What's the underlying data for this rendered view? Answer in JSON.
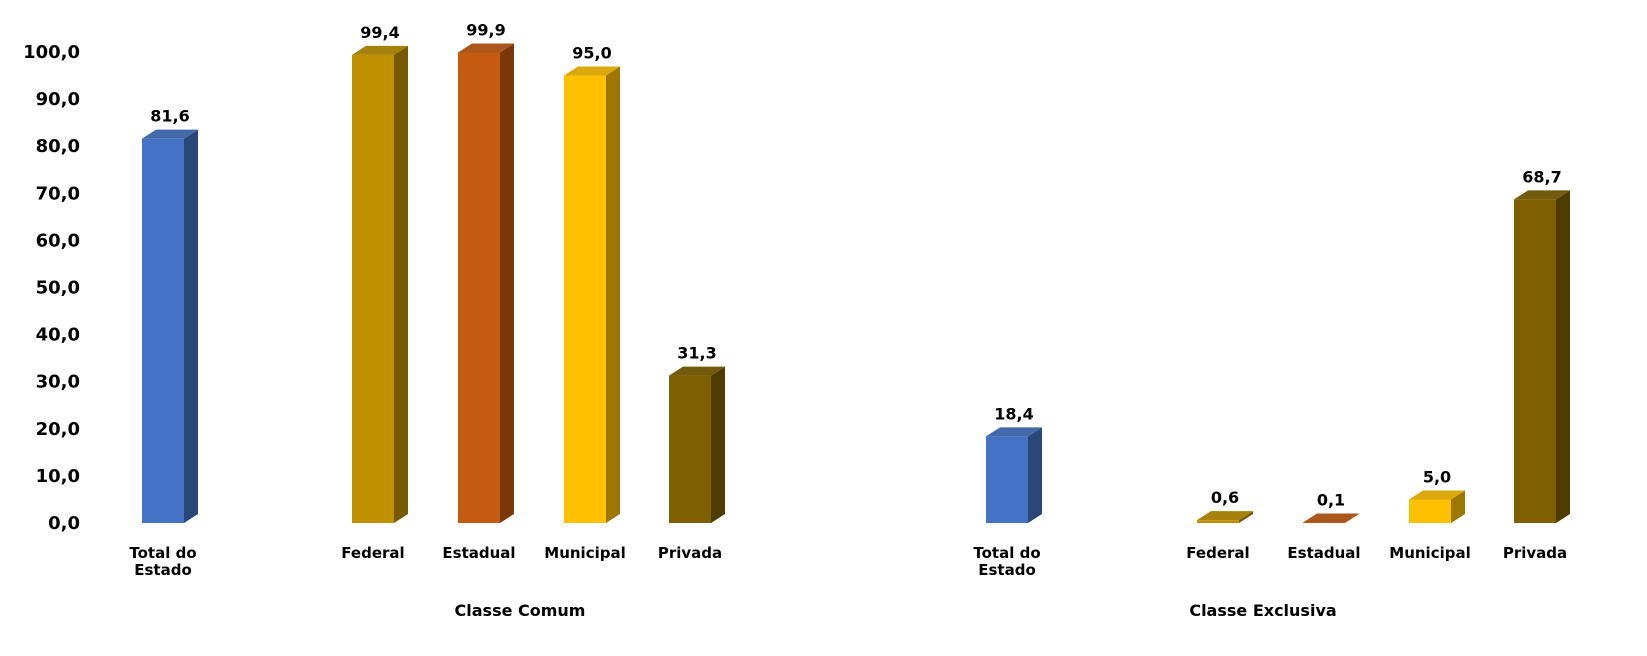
{
  "chart_data": {
    "type": "bar",
    "ylim": [
      0,
      100
    ],
    "y_ticks": [
      "0,0",
      "10,0",
      "20,0",
      "30,0",
      "40,0",
      "50,0",
      "60,0",
      "70,0",
      "80,0",
      "90,0",
      "100,0"
    ],
    "grid": false,
    "legend": "none",
    "groups": [
      {
        "name": "Classe Comum",
        "bars": [
          {
            "category": "Total do Estado",
            "value": 81.6,
            "label": "81,6",
            "color": "#4472C4"
          },
          {
            "category": "Federal",
            "value": 99.4,
            "label": "99,4",
            "color": "#BF9000"
          },
          {
            "category": "Estadual",
            "value": 99.9,
            "label": "99,9",
            "color": "#C55A11"
          },
          {
            "category": "Municipal",
            "value": 95.0,
            "label": "95,0",
            "color": "#FFC000"
          },
          {
            "category": "Privada",
            "value": 31.3,
            "label": "31,3",
            "color": "#7F6000"
          }
        ]
      },
      {
        "name": "Classe Exclusiva",
        "bars": [
          {
            "category": "Total do Estado",
            "value": 18.4,
            "label": "18,4",
            "color": "#4472C4"
          },
          {
            "category": "Federal",
            "value": 0.6,
            "label": "0,6",
            "color": "#BF9000"
          },
          {
            "category": "Estadual",
            "value": 0.1,
            "label": "0,1",
            "color": "#C55A11"
          },
          {
            "category": "Municipal",
            "value": 5.0,
            "label": "5,0",
            "color": "#FFC000"
          },
          {
            "category": "Privada",
            "value": 68.7,
            "label": "68,7",
            "color": "#7F6000"
          }
        ]
      }
    ]
  }
}
